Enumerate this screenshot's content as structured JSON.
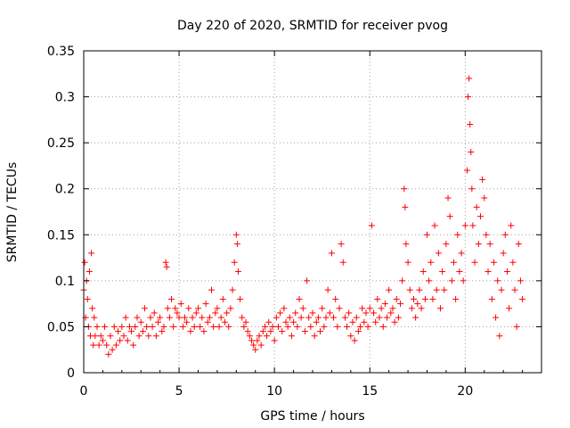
{
  "chart_data": {
    "type": "scatter",
    "title": "Day 220 of 2020, SRMTID for receiver pvog",
    "xlabel": "GPS time / hours",
    "ylabel": "SRMTID / TECUs",
    "xlim": [
      0,
      24
    ],
    "ylim": [
      0,
      0.35
    ],
    "x_ticks": [
      0,
      5,
      10,
      15,
      20
    ],
    "y_ticks": [
      0,
      0.05,
      0.1,
      0.15,
      0.2,
      0.25,
      0.3,
      0.35
    ],
    "x_tick_labels": [
      "0",
      "5",
      "10",
      "15",
      "20"
    ],
    "y_tick_labels": [
      "0",
      "0.05",
      "0.1",
      "0.15",
      "0.2",
      "0.25",
      "0.3",
      "0.35"
    ],
    "grid": true,
    "marker": "+",
    "color": "#ff0000",
    "series": [
      {
        "name": "SRMTID",
        "points": [
          [
            0.0,
            0.09
          ],
          [
            0.05,
            0.12
          ],
          [
            0.1,
            0.06
          ],
          [
            0.15,
            0.1
          ],
          [
            0.2,
            0.08
          ],
          [
            0.25,
            0.05
          ],
          [
            0.3,
            0.11
          ],
          [
            0.35,
            0.04
          ],
          [
            0.4,
            0.13
          ],
          [
            0.45,
            0.07
          ],
          [
            0.5,
            0.03
          ],
          [
            0.55,
            0.06
          ],
          [
            0.6,
            0.04
          ],
          [
            0.7,
            0.05
          ],
          [
            0.8,
            0.03
          ],
          [
            0.9,
            0.04
          ],
          [
            1.0,
            0.035
          ],
          [
            1.1,
            0.05
          ],
          [
            1.2,
            0.03
          ],
          [
            1.3,
            0.02
          ],
          [
            1.4,
            0.04
          ],
          [
            1.5,
            0.025
          ],
          [
            1.6,
            0.05
          ],
          [
            1.7,
            0.03
          ],
          [
            1.8,
            0.045
          ],
          [
            1.9,
            0.035
          ],
          [
            2.0,
            0.05
          ],
          [
            2.1,
            0.04
          ],
          [
            2.2,
            0.06
          ],
          [
            2.3,
            0.035
          ],
          [
            2.4,
            0.05
          ],
          [
            2.5,
            0.045
          ],
          [
            2.6,
            0.03
          ],
          [
            2.7,
            0.05
          ],
          [
            2.8,
            0.06
          ],
          [
            2.9,
            0.04
          ],
          [
            3.0,
            0.055
          ],
          [
            3.1,
            0.045
          ],
          [
            3.2,
            0.07
          ],
          [
            3.3,
            0.05
          ],
          [
            3.4,
            0.04
          ],
          [
            3.5,
            0.06
          ],
          [
            3.6,
            0.05
          ],
          [
            3.7,
            0.065
          ],
          [
            3.8,
            0.04
          ],
          [
            3.9,
            0.055
          ],
          [
            4.0,
            0.06
          ],
          [
            4.1,
            0.045
          ],
          [
            4.2,
            0.05
          ],
          [
            4.3,
            0.12
          ],
          [
            4.35,
            0.115
          ],
          [
            4.4,
            0.07
          ],
          [
            4.5,
            0.06
          ],
          [
            4.6,
            0.08
          ],
          [
            4.7,
            0.05
          ],
          [
            4.8,
            0.07
          ],
          [
            4.9,
            0.065
          ],
          [
            5.0,
            0.06
          ],
          [
            5.1,
            0.075
          ],
          [
            5.2,
            0.05
          ],
          [
            5.3,
            0.06
          ],
          [
            5.4,
            0.055
          ],
          [
            5.5,
            0.07
          ],
          [
            5.6,
            0.045
          ],
          [
            5.7,
            0.06
          ],
          [
            5.8,
            0.05
          ],
          [
            5.9,
            0.065
          ],
          [
            6.0,
            0.07
          ],
          [
            6.1,
            0.05
          ],
          [
            6.2,
            0.06
          ],
          [
            6.3,
            0.045
          ],
          [
            6.4,
            0.075
          ],
          [
            6.5,
            0.055
          ],
          [
            6.6,
            0.06
          ],
          [
            6.7,
            0.09
          ],
          [
            6.8,
            0.05
          ],
          [
            6.9,
            0.065
          ],
          [
            7.0,
            0.07
          ],
          [
            7.1,
            0.05
          ],
          [
            7.2,
            0.06
          ],
          [
            7.3,
            0.08
          ],
          [
            7.4,
            0.055
          ],
          [
            7.5,
            0.065
          ],
          [
            7.6,
            0.05
          ],
          [
            7.7,
            0.07
          ],
          [
            7.8,
            0.09
          ],
          [
            7.9,
            0.12
          ],
          [
            8.0,
            0.15
          ],
          [
            8.05,
            0.14
          ],
          [
            8.1,
            0.11
          ],
          [
            8.2,
            0.08
          ],
          [
            8.3,
            0.06
          ],
          [
            8.4,
            0.05
          ],
          [
            8.5,
            0.055
          ],
          [
            8.6,
            0.045
          ],
          [
            8.7,
            0.04
          ],
          [
            8.8,
            0.035
          ],
          [
            8.9,
            0.03
          ],
          [
            9.0,
            0.025
          ],
          [
            9.1,
            0.035
          ],
          [
            9.2,
            0.04
          ],
          [
            9.3,
            0.03
          ],
          [
            9.4,
            0.045
          ],
          [
            9.5,
            0.05
          ],
          [
            9.6,
            0.04
          ],
          [
            9.7,
            0.055
          ],
          [
            9.8,
            0.045
          ],
          [
            9.9,
            0.05
          ],
          [
            10.0,
            0.035
          ],
          [
            10.1,
            0.06
          ],
          [
            10.2,
            0.05
          ],
          [
            10.3,
            0.065
          ],
          [
            10.4,
            0.045
          ],
          [
            10.5,
            0.07
          ],
          [
            10.6,
            0.055
          ],
          [
            10.7,
            0.05
          ],
          [
            10.8,
            0.06
          ],
          [
            10.9,
            0.04
          ],
          [
            11.0,
            0.055
          ],
          [
            11.1,
            0.065
          ],
          [
            11.2,
            0.05
          ],
          [
            11.3,
            0.08
          ],
          [
            11.4,
            0.06
          ],
          [
            11.5,
            0.07
          ],
          [
            11.6,
            0.045
          ],
          [
            11.7,
            0.1
          ],
          [
            11.8,
            0.06
          ],
          [
            11.9,
            0.05
          ],
          [
            12.0,
            0.065
          ],
          [
            12.1,
            0.04
          ],
          [
            12.2,
            0.055
          ],
          [
            12.3,
            0.06
          ],
          [
            12.4,
            0.045
          ],
          [
            12.5,
            0.07
          ],
          [
            12.6,
            0.05
          ],
          [
            12.7,
            0.06
          ],
          [
            12.8,
            0.09
          ],
          [
            12.9,
            0.065
          ],
          [
            13.0,
            0.13
          ],
          [
            13.1,
            0.06
          ],
          [
            13.2,
            0.08
          ],
          [
            13.3,
            0.05
          ],
          [
            13.4,
            0.07
          ],
          [
            13.5,
            0.14
          ],
          [
            13.6,
            0.12
          ],
          [
            13.7,
            0.06
          ],
          [
            13.8,
            0.05
          ],
          [
            13.9,
            0.065
          ],
          [
            14.0,
            0.04
          ],
          [
            14.1,
            0.055
          ],
          [
            14.2,
            0.035
          ],
          [
            14.3,
            0.06
          ],
          [
            14.4,
            0.045
          ],
          [
            14.5,
            0.05
          ],
          [
            14.6,
            0.07
          ],
          [
            14.7,
            0.055
          ],
          [
            14.8,
            0.065
          ],
          [
            14.9,
            0.05
          ],
          [
            15.0,
            0.07
          ],
          [
            15.1,
            0.16
          ],
          [
            15.2,
            0.065
          ],
          [
            15.3,
            0.055
          ],
          [
            15.4,
            0.08
          ],
          [
            15.5,
            0.06
          ],
          [
            15.6,
            0.07
          ],
          [
            15.7,
            0.05
          ],
          [
            15.8,
            0.075
          ],
          [
            15.9,
            0.06
          ],
          [
            16.0,
            0.09
          ],
          [
            16.1,
            0.065
          ],
          [
            16.2,
            0.07
          ],
          [
            16.3,
            0.055
          ],
          [
            16.4,
            0.08
          ],
          [
            16.5,
            0.06
          ],
          [
            16.6,
            0.075
          ],
          [
            16.7,
            0.1
          ],
          [
            16.8,
            0.2
          ],
          [
            16.85,
            0.18
          ],
          [
            16.9,
            0.14
          ],
          [
            17.0,
            0.12
          ],
          [
            17.1,
            0.09
          ],
          [
            17.2,
            0.07
          ],
          [
            17.3,
            0.08
          ],
          [
            17.4,
            0.06
          ],
          [
            17.5,
            0.075
          ],
          [
            17.6,
            0.09
          ],
          [
            17.7,
            0.07
          ],
          [
            17.8,
            0.11
          ],
          [
            17.9,
            0.08
          ],
          [
            18.0,
            0.15
          ],
          [
            18.1,
            0.1
          ],
          [
            18.2,
            0.12
          ],
          [
            18.3,
            0.08
          ],
          [
            18.4,
            0.16
          ],
          [
            18.5,
            0.09
          ],
          [
            18.6,
            0.13
          ],
          [
            18.7,
            0.07
          ],
          [
            18.8,
            0.11
          ],
          [
            18.9,
            0.09
          ],
          [
            19.0,
            0.14
          ],
          [
            19.1,
            0.19
          ],
          [
            19.2,
            0.17
          ],
          [
            19.3,
            0.1
          ],
          [
            19.4,
            0.12
          ],
          [
            19.5,
            0.08
          ],
          [
            19.6,
            0.15
          ],
          [
            19.7,
            0.11
          ],
          [
            19.8,
            0.13
          ],
          [
            19.9,
            0.1
          ],
          [
            20.0,
            0.16
          ],
          [
            20.1,
            0.22
          ],
          [
            20.15,
            0.3
          ],
          [
            20.2,
            0.32
          ],
          [
            20.25,
            0.27
          ],
          [
            20.3,
            0.24
          ],
          [
            20.35,
            0.2
          ],
          [
            20.4,
            0.16
          ],
          [
            20.5,
            0.12
          ],
          [
            20.6,
            0.18
          ],
          [
            20.7,
            0.14
          ],
          [
            20.8,
            0.17
          ],
          [
            20.9,
            0.21
          ],
          [
            21.0,
            0.19
          ],
          [
            21.1,
            0.15
          ],
          [
            21.2,
            0.11
          ],
          [
            21.3,
            0.14
          ],
          [
            21.4,
            0.08
          ],
          [
            21.5,
            0.12
          ],
          [
            21.6,
            0.06
          ],
          [
            21.7,
            0.1
          ],
          [
            21.8,
            0.04
          ],
          [
            21.9,
            0.09
          ],
          [
            22.0,
            0.13
          ],
          [
            22.1,
            0.15
          ],
          [
            22.2,
            0.11
          ],
          [
            22.3,
            0.07
          ],
          [
            22.4,
            0.16
          ],
          [
            22.5,
            0.12
          ],
          [
            22.6,
            0.09
          ],
          [
            22.7,
            0.05
          ],
          [
            22.8,
            0.14
          ],
          [
            22.9,
            0.1
          ],
          [
            23.0,
            0.08
          ]
        ]
      }
    ]
  }
}
